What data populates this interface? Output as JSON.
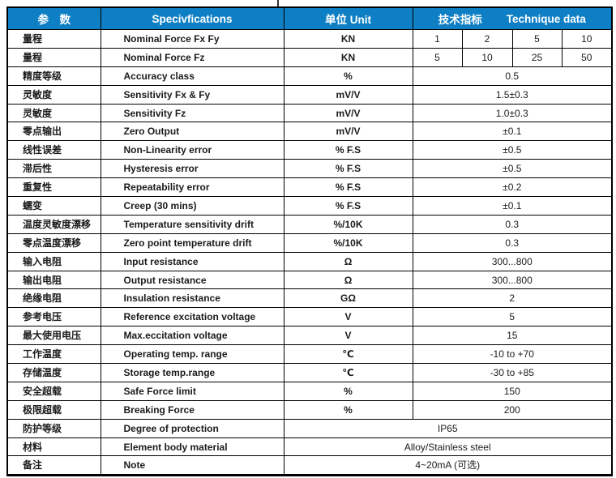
{
  "colors": {
    "header_bg": "#0e7fc4",
    "header_fg": "#ffffff",
    "border": "#000000"
  },
  "table": {
    "headers": {
      "param": "参　数",
      "spec": "Specivfications",
      "unit": "单位  Unit",
      "tech_cn": "技术指标",
      "tech_en": "Technique data"
    },
    "rows": [
      {
        "param": "量程",
        "spec": "Nominal Force Fx Fy",
        "unit": "KN",
        "values": [
          "1",
          "2",
          "5",
          "10"
        ]
      },
      {
        "param": "量程",
        "spec": "Nominal Force Fz",
        "unit": "KN",
        "values": [
          "5",
          "10",
          "25",
          "50"
        ]
      },
      {
        "param": "精度等级",
        "spec": "Accuracy class",
        "unit": "%",
        "value": "0.5"
      },
      {
        "param": "灵敏度",
        "spec": "Sensitivity Fx & Fy",
        "unit": "mV/V",
        "value": "1.5±0.3"
      },
      {
        "param": "灵敏度",
        "spec": "Sensitivity Fz",
        "unit": "mV/V",
        "value": "1.0±0.3"
      },
      {
        "param": "零点输出",
        "spec": "Zero Output",
        "unit": "mV/V",
        "value": "±0.1"
      },
      {
        "param": "线性误差",
        "spec": "Non-Linearity error",
        "unit": "% F.S",
        "value": "±0.5"
      },
      {
        "param": "滞后性",
        "spec": "Hysteresis error",
        "unit": "% F.S",
        "value": "±0.5"
      },
      {
        "param": "重复性",
        "spec": "Repeatability error",
        "unit": "% F.S",
        "value": "±0.2"
      },
      {
        "param": "蠕变",
        "spec": "Creep (30 mins)",
        "unit": "% F.S",
        "value": "±0.1"
      },
      {
        "param": "温度灵敏度漂移",
        "spec": "Temperature sensitivity drift",
        "unit": "%/10K",
        "value": "0.3"
      },
      {
        "param": "零点温度漂移",
        "spec": "Zero point temperature drift",
        "unit": "%/10K",
        "value": "0.3"
      },
      {
        "param": "输入电阻",
        "spec": "Input resistance",
        "unit": "Ω",
        "value": "300...800"
      },
      {
        "param": "输出电阻",
        "spec": "Output resistance",
        "unit": "Ω",
        "value": "300...800"
      },
      {
        "param": "绝缘电阻",
        "spec": "Insulation resistance",
        "unit": "GΩ",
        "value": "2"
      },
      {
        "param": "参考电压",
        "spec": "Reference excitation voltage",
        "unit": "V",
        "value": "5"
      },
      {
        "param": "最大使用电压",
        "spec": "Max.eccitation voltage",
        "unit": "V",
        "value": "15"
      },
      {
        "param": "工作温度",
        "spec": "Operating temp. range",
        "unit": "℃",
        "value": "-10 to +70"
      },
      {
        "param": "存储温度",
        "spec": "Storage temp.range",
        "unit": "℃",
        "value": "-30 to +85"
      },
      {
        "param": "安全超载",
        "spec": "Safe Force limit",
        "unit": "%",
        "value": "150"
      },
      {
        "param": "极限超载",
        "spec": "Breaking Force",
        "unit": "%",
        "value": "200"
      },
      {
        "param": "防护等级",
        "spec": "Degree of protection",
        "span": "IP65"
      },
      {
        "param": "材料",
        "spec": "Element body material",
        "span": "Alloy/Stainless steel"
      },
      {
        "param": "备注",
        "spec": "Note",
        "span": "4~20mA (可选)"
      }
    ]
  }
}
